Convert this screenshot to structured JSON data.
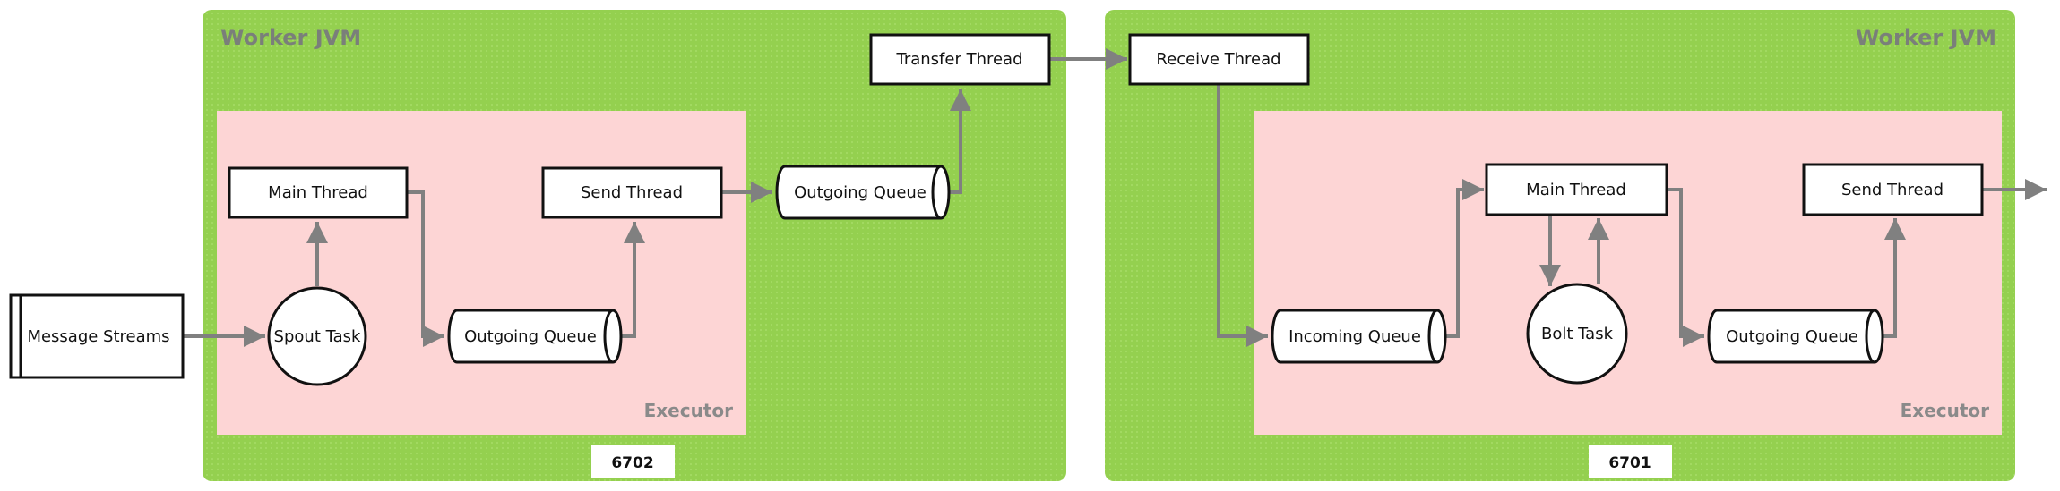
{
  "colors": {
    "jvm_fill": "#94d04f",
    "executor_fill": "#fdd5d5",
    "arrow": "#808080",
    "node_stroke": "#111111"
  },
  "left_jvm": {
    "title": "Worker JVM",
    "port": "6702",
    "executor_label": "Executor",
    "main_thread": "Main Thread",
    "send_thread": "Send Thread",
    "spout_task": "Spout Task",
    "executor_outgoing_queue": "Outgoing Queue",
    "worker_outgoing_queue": "Outgoing Queue",
    "transfer_thread": "Transfer Thread"
  },
  "right_jvm": {
    "title": "Worker JVM",
    "port": "6701",
    "executor_label": "Executor",
    "receive_thread": "Receive Thread",
    "incoming_queue": "Incoming Queue",
    "main_thread": "Main Thread",
    "bolt_task": "Bolt Task",
    "outgoing_queue": "Outgoing Queue",
    "send_thread": "Send Thread"
  },
  "external": {
    "message_streams": "Message Streams"
  }
}
